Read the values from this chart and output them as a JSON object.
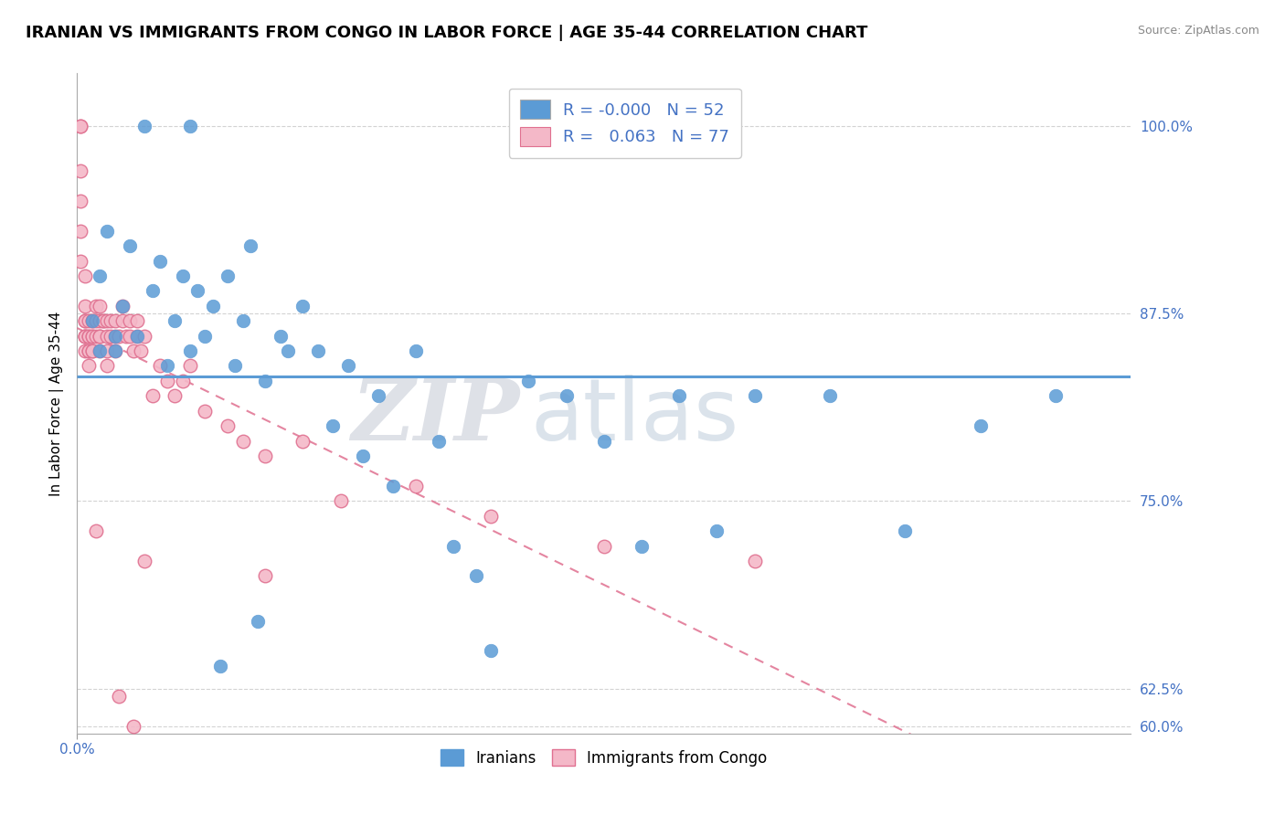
{
  "title": "IRANIAN VS IMMIGRANTS FROM CONGO IN LABOR FORCE | AGE 35-44 CORRELATION CHART",
  "source": "Source: ZipAtlas.com",
  "ylabel": "In Labor Force | Age 35-44",
  "xlim": [
    0.0,
    0.014
  ],
  "ylim": [
    0.595,
    1.035
  ],
  "yticks": [
    0.6,
    0.625,
    0.75,
    0.875,
    1.0
  ],
  "ytick_labels": [
    "60.0%",
    "62.5%",
    "75.0%",
    "87.5%",
    "100.0%"
  ],
  "xtick_labels": [
    "0.0%"
  ],
  "blue_color": "#5b9bd5",
  "pink_color": "#f4b8c8",
  "pink_color_edge": "#e07090",
  "blue_R": "-0.000",
  "blue_N": "52",
  "pink_R": "0.063",
  "pink_N": "77",
  "title_fontsize": 13,
  "axis_label_fontsize": 11,
  "tick_fontsize": 11,
  "watermark_zip": "ZIP",
  "watermark_atlas": "atlas",
  "background_color": "#ffffff",
  "blue_scatter_x": [
    0.0002,
    0.0003,
    0.0004,
    0.0005,
    0.0006,
    0.0007,
    0.0008,
    0.001,
    0.0011,
    0.0012,
    0.0013,
    0.0014,
    0.0015,
    0.0016,
    0.0017,
    0.0018,
    0.002,
    0.0021,
    0.0022,
    0.0023,
    0.0025,
    0.0027,
    0.003,
    0.0032,
    0.0034,
    0.0036,
    0.0038,
    0.004,
    0.0042,
    0.0045,
    0.0048,
    0.005,
    0.0053,
    0.006,
    0.0065,
    0.007,
    0.0075,
    0.008,
    0.009,
    0.01,
    0.011,
    0.012,
    0.013,
    0.0085,
    0.0055,
    0.0028,
    0.0019,
    0.0024,
    0.0015,
    0.0009,
    0.0005,
    0.0003
  ],
  "blue_scatter_y": [
    0.87,
    0.9,
    0.93,
    0.85,
    0.88,
    0.92,
    0.86,
    0.89,
    0.91,
    0.84,
    0.87,
    0.9,
    0.85,
    0.89,
    0.86,
    0.88,
    0.9,
    0.84,
    0.87,
    0.92,
    0.83,
    0.86,
    0.88,
    0.85,
    0.8,
    0.84,
    0.78,
    0.82,
    0.76,
    0.85,
    0.79,
    0.72,
    0.7,
    0.83,
    0.82,
    0.79,
    0.72,
    0.82,
    0.82,
    0.82,
    0.73,
    0.8,
    0.82,
    0.73,
    0.65,
    0.85,
    0.64,
    0.67,
    1.0,
    1.0,
    0.86,
    0.85
  ],
  "pink_scatter_x": [
    5e-05,
    5e-05,
    5e-05,
    5e-05,
    5e-05,
    5e-05,
    0.0001,
    0.0001,
    0.0001,
    0.0001,
    0.0001,
    0.0001,
    0.0001,
    0.0001,
    0.00015,
    0.00015,
    0.00015,
    0.00015,
    0.00015,
    0.00015,
    0.0002,
    0.0002,
    0.0002,
    0.0002,
    0.0002,
    0.0002,
    0.00025,
    0.00025,
    0.00025,
    0.0003,
    0.0003,
    0.0003,
    0.0003,
    0.0003,
    0.00035,
    0.00035,
    0.0004,
    0.0004,
    0.0004,
    0.0004,
    0.00045,
    0.00045,
    0.0005,
    0.0005,
    0.0005,
    0.00055,
    0.0006,
    0.0006,
    0.00065,
    0.0007,
    0.0007,
    0.00075,
    0.0008,
    0.0008,
    0.00085,
    0.0009,
    0.001,
    0.0011,
    0.0012,
    0.0013,
    0.0014,
    0.0015,
    0.0017,
    0.002,
    0.0022,
    0.0025,
    0.003,
    0.0035,
    0.0045,
    0.0055,
    0.007,
    0.009,
    0.0025,
    0.00025,
    0.00055,
    0.00075,
    0.0009
  ],
  "pink_scatter_y": [
    1.0,
    1.0,
    0.97,
    0.95,
    0.93,
    0.91,
    0.9,
    0.88,
    0.87,
    0.87,
    0.86,
    0.86,
    0.86,
    0.85,
    0.87,
    0.86,
    0.86,
    0.85,
    0.85,
    0.84,
    0.87,
    0.87,
    0.86,
    0.86,
    0.85,
    0.85,
    0.88,
    0.87,
    0.86,
    0.88,
    0.87,
    0.86,
    0.86,
    0.85,
    0.87,
    0.87,
    0.87,
    0.86,
    0.85,
    0.84,
    0.87,
    0.86,
    0.87,
    0.86,
    0.85,
    0.86,
    0.88,
    0.87,
    0.86,
    0.87,
    0.86,
    0.85,
    0.87,
    0.86,
    0.85,
    0.86,
    0.82,
    0.84,
    0.83,
    0.82,
    0.83,
    0.84,
    0.81,
    0.8,
    0.79,
    0.78,
    0.79,
    0.75,
    0.76,
    0.74,
    0.72,
    0.71,
    0.7,
    0.73,
    0.62,
    0.6,
    0.71
  ]
}
